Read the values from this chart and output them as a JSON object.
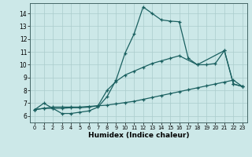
{
  "xlabel": "Humidex (Indice chaleur)",
  "xlim": [
    -0.5,
    23.5
  ],
  "ylim": [
    5.5,
    14.8
  ],
  "xticks": [
    0,
    1,
    2,
    3,
    4,
    5,
    6,
    7,
    8,
    9,
    10,
    11,
    12,
    13,
    14,
    15,
    16,
    17,
    18,
    19,
    20,
    21,
    22,
    23
  ],
  "yticks": [
    6,
    7,
    8,
    9,
    10,
    11,
    12,
    13,
    14
  ],
  "background_color": "#cce8e8",
  "grid_color": "#aacccc",
  "line_color": "#1a6060",
  "line1_x": [
    0,
    1,
    2,
    3,
    4,
    5,
    6,
    7,
    8,
    9,
    10,
    11,
    12,
    13,
    14,
    15,
    16,
    17,
    18,
    21,
    22,
    23
  ],
  "line1_y": [
    6.5,
    7.0,
    6.6,
    6.2,
    6.2,
    6.3,
    6.4,
    6.7,
    7.5,
    8.8,
    10.9,
    12.4,
    14.5,
    14.0,
    13.5,
    13.4,
    13.35,
    10.5,
    10.0,
    11.1,
    8.5,
    8.3
  ],
  "line2_x": [
    0,
    1,
    2,
    3,
    4,
    5,
    6,
    7,
    8,
    9,
    10,
    11,
    12,
    13,
    14,
    15,
    16,
    18,
    19,
    20,
    21,
    22,
    23
  ],
  "line2_y": [
    6.5,
    6.6,
    6.6,
    6.6,
    6.65,
    6.65,
    6.7,
    6.8,
    8.0,
    8.7,
    9.2,
    9.5,
    9.8,
    10.1,
    10.3,
    10.5,
    10.7,
    10.0,
    10.0,
    10.1,
    11.1,
    8.5,
    8.3
  ],
  "line3_x": [
    0,
    1,
    2,
    3,
    4,
    5,
    6,
    7,
    8,
    9,
    10,
    11,
    12,
    13,
    14,
    15,
    16,
    17,
    18,
    19,
    20,
    21,
    22,
    23
  ],
  "line3_y": [
    6.5,
    6.6,
    6.7,
    6.7,
    6.7,
    6.7,
    6.75,
    6.8,
    6.85,
    6.95,
    7.05,
    7.15,
    7.3,
    7.45,
    7.6,
    7.75,
    7.9,
    8.05,
    8.2,
    8.35,
    8.5,
    8.65,
    8.8,
    8.3
  ]
}
